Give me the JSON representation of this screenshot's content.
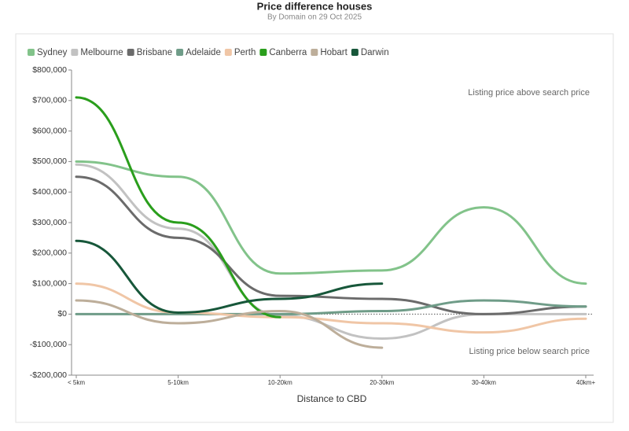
{
  "chart_data": {
    "type": "line",
    "title": "Price difference houses",
    "subtitle": "By Domain on 29 Oct 2025",
    "x_label": "Distance to CBD",
    "annotations": [
      "Listing price above search price",
      "Listing price below search price"
    ],
    "categories": [
      "< 5km",
      "5-10km",
      "10-20km",
      "20-30km",
      "30-40km",
      "40km+"
    ],
    "ylim": [
      -200000,
      800000
    ],
    "yticks": [
      {
        "value": -200000,
        "label": "-$200,000"
      },
      {
        "value": -100000,
        "label": "-$100,000"
      },
      {
        "value": 0,
        "label": "$0"
      },
      {
        "value": 100000,
        "label": "$100,000"
      },
      {
        "value": 200000,
        "label": "$200,000"
      },
      {
        "value": 300000,
        "label": "$300,000"
      },
      {
        "value": 400000,
        "label": "$400,000"
      },
      {
        "value": 500000,
        "label": "$500,000"
      },
      {
        "value": 600000,
        "label": "$600,000"
      },
      {
        "value": 700000,
        "label": "$700,000"
      },
      {
        "value": 800000,
        "label": "$800,000"
      }
    ],
    "series": [
      {
        "name": "Sydney",
        "color": "#82c38a",
        "values": [
          500000,
          450000,
          133000,
          143000,
          350000,
          100000
        ]
      },
      {
        "name": "Melbourne",
        "color": "#c2c2c2",
        "values": [
          490000,
          280000,
          -5000,
          -80000,
          0,
          0
        ]
      },
      {
        "name": "Brisbane",
        "color": "#6b6b6b",
        "values": [
          450000,
          250000,
          60000,
          50000,
          0,
          25000
        ]
      },
      {
        "name": "Adelaide",
        "color": "#6f9c88",
        "values": [
          0,
          0,
          0,
          10000,
          45000,
          25000
        ]
      },
      {
        "name": "Perth",
        "color": "#f0c6a6",
        "values": [
          100000,
          5000,
          -10000,
          -30000,
          -60000,
          -15000
        ]
      },
      {
        "name": "Canberra",
        "color": "#2a9e1c",
        "values": [
          710000,
          300000,
          -10000,
          null,
          null,
          null
        ]
      },
      {
        "name": "Hobart",
        "color": "#bdae9a",
        "values": [
          45000,
          -30000,
          10000,
          -110000,
          null,
          null
        ]
      },
      {
        "name": "Darwin",
        "color": "#17573a",
        "values": [
          240000,
          5000,
          50000,
          100000,
          null,
          null
        ]
      }
    ]
  }
}
